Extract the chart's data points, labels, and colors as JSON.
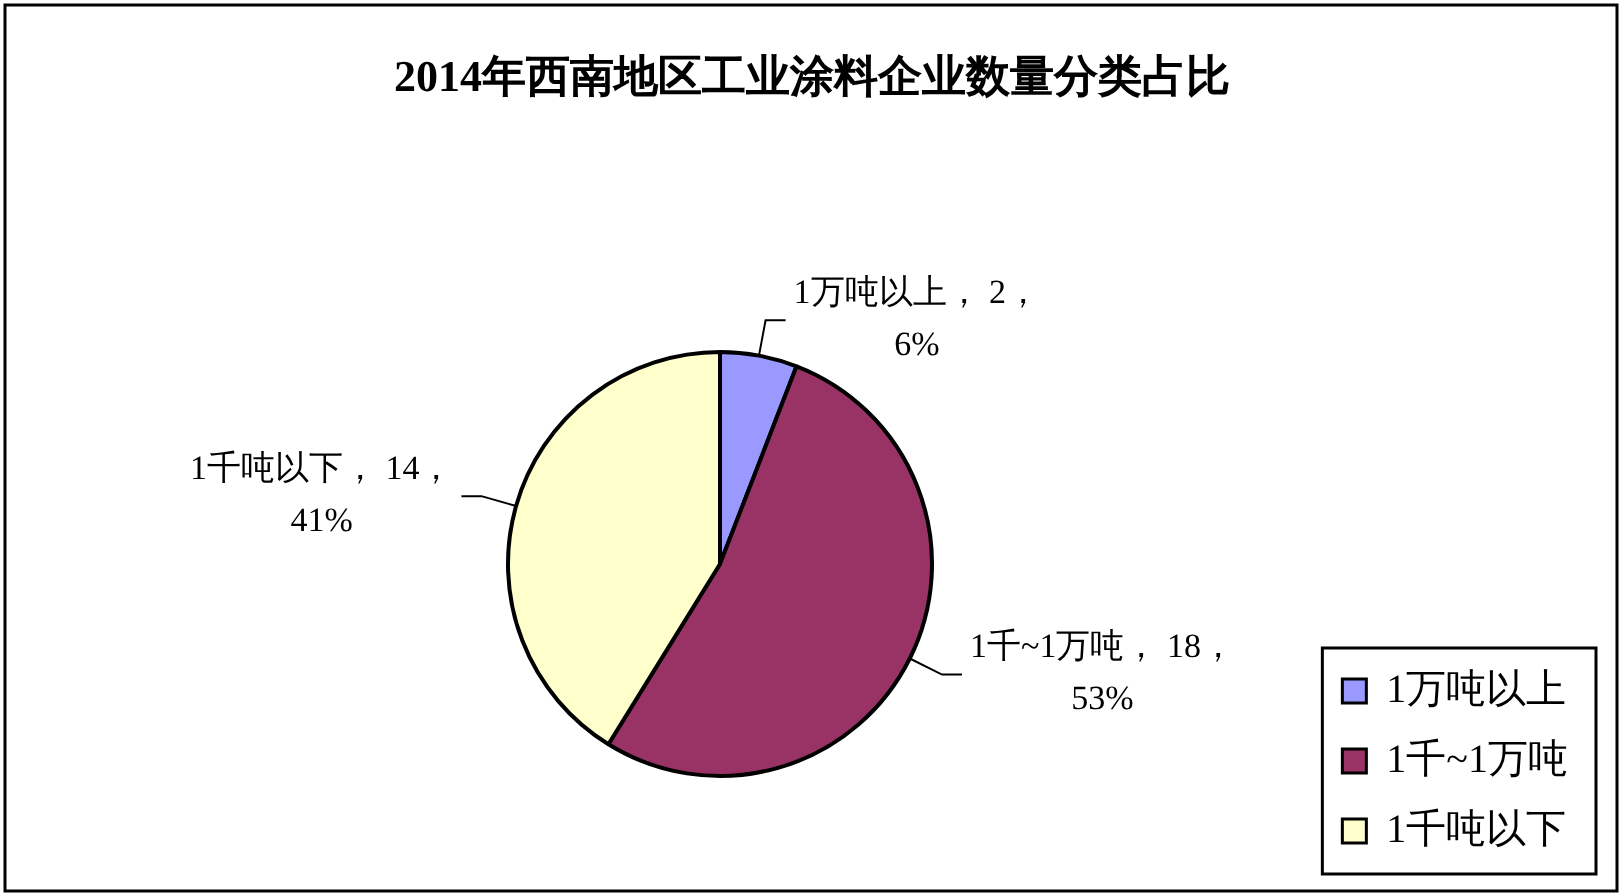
{
  "chart_data": {
    "type": "pie",
    "title": "2014年西南地区工业涂料企业数量分类占比",
    "categories": [
      "1万吨以上",
      "1千~1万吨",
      "1千吨以下"
    ],
    "values": [
      2,
      18,
      14
    ],
    "colors": [
      "#9999ff",
      "#993366",
      "#ffffcc"
    ],
    "value_labels": [
      "1万吨以上， 2，\n6%",
      "1千~1万吨， 18，\n53%",
      "1千吨以下， 14，\n41%"
    ],
    "legend": "bottom right"
  }
}
